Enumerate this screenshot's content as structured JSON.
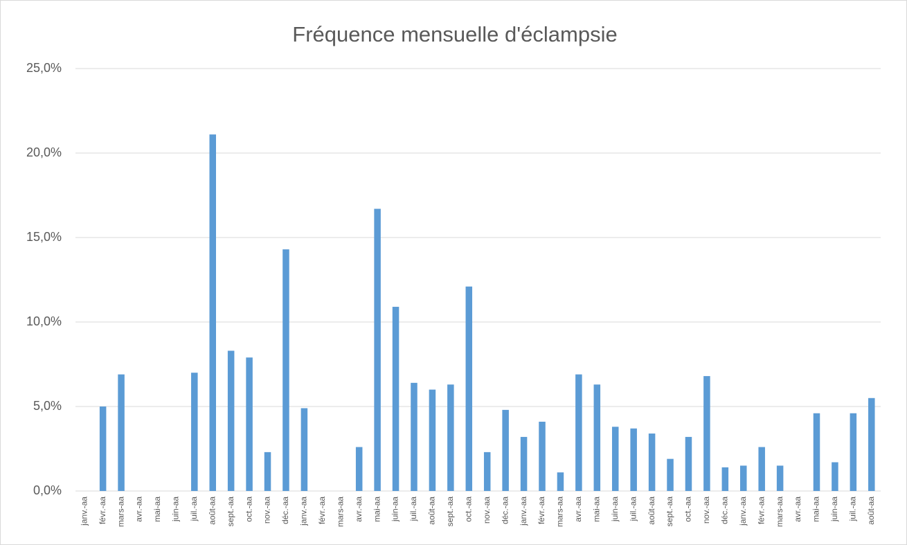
{
  "chart_data": {
    "type": "bar",
    "title": "Fréquence mensuelle d'éclampsie",
    "categories": [
      "janv.-aa",
      "févr.-aa",
      "mars-aa",
      "avr.-aa",
      "mai-aa",
      "juin-aa",
      "juil.-aa",
      "août-aa",
      "sept.-aa",
      "oct.-aa",
      "nov.-aa",
      "déc.-aa",
      "janv.-aa",
      "févr.-aa",
      "mars-aa",
      "avr.-aa",
      "mai-aa",
      "juin-aa",
      "juil.-aa",
      "août-aa",
      "sept.-aa",
      "oct.-aa",
      "nov.-aa",
      "déc.-aa",
      "janv.-aa",
      "févr.-aa",
      "mars-aa",
      "avr.-aa",
      "mai-aa",
      "juin-aa",
      "juil.-aa",
      "août-aa",
      "sept.-aa",
      "oct.-aa",
      "nov.-aa",
      "déc.-aa",
      "janv.-aa",
      "févr.-aa",
      "mars-aa",
      "avr.-aa",
      "mai-aa",
      "juin-aa",
      "juil.-aa",
      "août-aa"
    ],
    "values": [
      0,
      5.0,
      6.9,
      0,
      0,
      0,
      7.0,
      21.1,
      8.3,
      7.9,
      2.3,
      14.3,
      4.9,
      0,
      0,
      2.6,
      16.7,
      10.9,
      6.4,
      6.0,
      6.3,
      12.1,
      2.3,
      4.8,
      3.2,
      4.1,
      1.1,
      6.9,
      6.3,
      3.8,
      3.7,
      3.4,
      1.9,
      3.2,
      6.8,
      1.4,
      1.5,
      2.6,
      1.5,
      0,
      4.6,
      1.7,
      4.6,
      5.5
    ],
    "color": "#5b9bd5",
    "ylim": [
      0,
      25
    ],
    "yticks": [
      {
        "value": 0,
        "label": "0,0%"
      },
      {
        "value": 5,
        "label": "5,0%"
      },
      {
        "value": 10,
        "label": "10,0%"
      },
      {
        "value": 15,
        "label": "15,0%"
      },
      {
        "value": 20,
        "label": "20,0%"
      },
      {
        "value": 25,
        "label": "25,0%"
      }
    ],
    "grid": true
  }
}
